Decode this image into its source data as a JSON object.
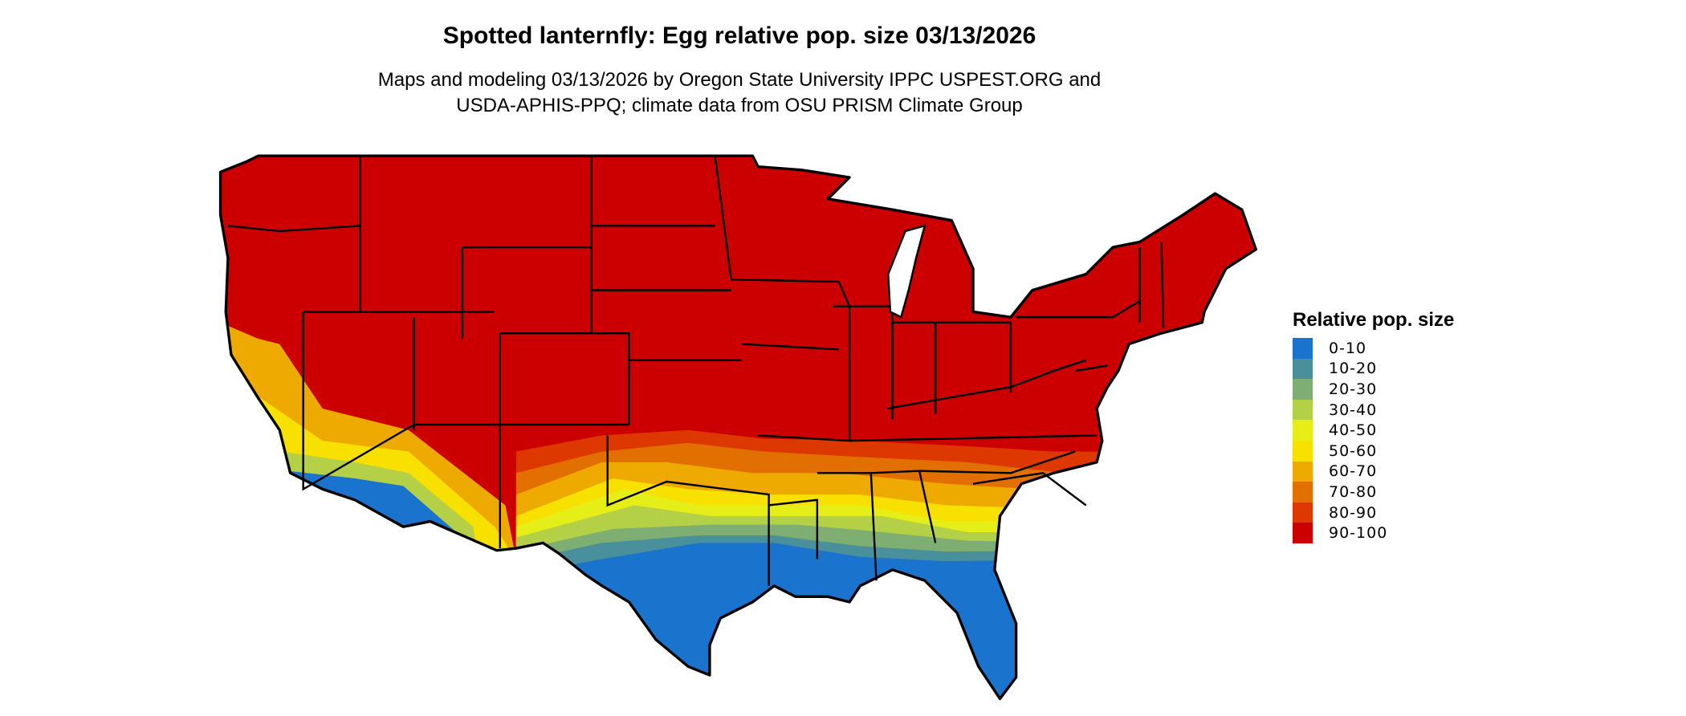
{
  "title": "Spotted lanternfly: Egg relative pop. size 03/13/2026",
  "subtitle_line1": "Maps and modeling 03/13/2026 by Oregon State University IPPC USPEST.ORG and",
  "subtitle_line2": "USDA-APHIS-PPQ; climate data from OSU PRISM Climate Group",
  "map": {
    "region": "Contiguous United States",
    "state_borders": true,
    "predominant_class": "90-100"
  },
  "legend": {
    "title": "Relative pop. size",
    "classes": [
      {
        "label": "0-10",
        "color": "#1a73cc"
      },
      {
        "label": "10-20",
        "color": "#4a8f9c"
      },
      {
        "label": "20-30",
        "color": "#7eae72"
      },
      {
        "label": "30-40",
        "color": "#b4d046"
      },
      {
        "label": "40-50",
        "color": "#e6ee18"
      },
      {
        "label": "50-60",
        "color": "#f8e000"
      },
      {
        "label": "60-70",
        "color": "#eeaa00"
      },
      {
        "label": "70-80",
        "color": "#e27000"
      },
      {
        "label": "80-90",
        "color": "#dc3800"
      },
      {
        "label": "90-100",
        "color": "#cc0000"
      }
    ]
  }
}
